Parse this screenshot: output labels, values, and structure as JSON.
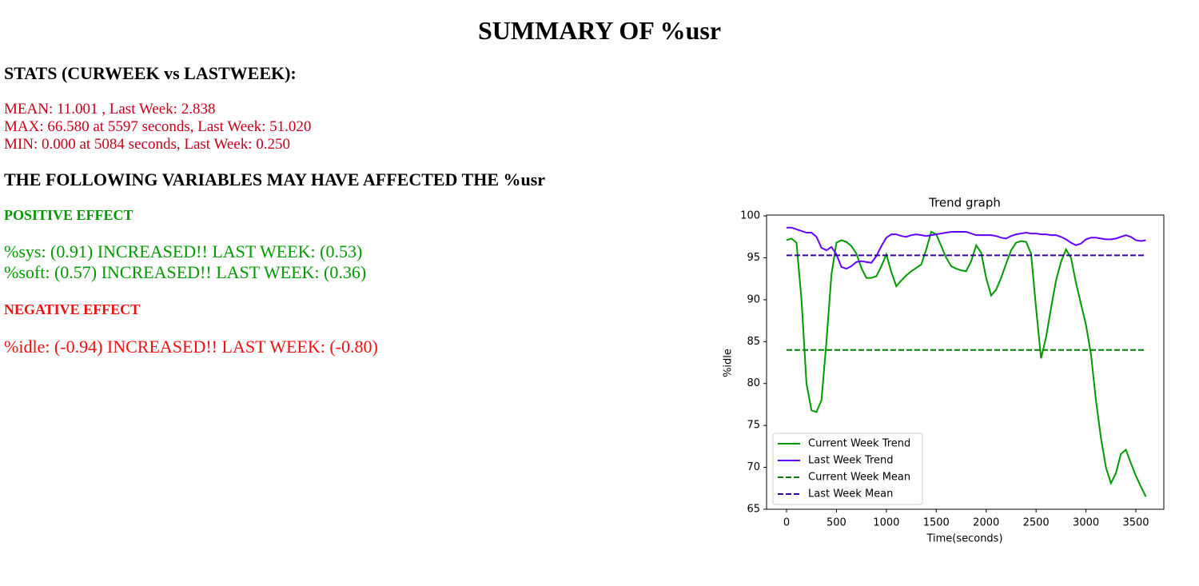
{
  "title": "SUMMARY OF %usr",
  "stats": {
    "heading": "STATS (CURWEEK vs LASTWEEK):",
    "lines": [
      "MEAN: 11.001 , Last Week: 2.838",
      "MAX: 66.580 at 5597 seconds, Last Week: 51.020",
      "MIN: 0.000 at 5084 seconds, Last Week: 0.250"
    ]
  },
  "variables_heading": "THE FOLLOWING VARIABLES MAY HAVE AFFECTED THE %usr",
  "positive": {
    "heading": "POSITIVE EFFECT",
    "lines": [
      "%sys: (0.91) INCREASED!! LAST WEEK: (0.53)",
      "%soft: (0.57) INCREASED!! LAST WEEK: (0.36)"
    ]
  },
  "negative": {
    "heading": "NEGATIVE EFFECT",
    "lines": [
      "%idle: (-0.94) INCREASED!! LAST WEEK: (-0.80)"
    ]
  },
  "chart_data": {
    "type": "line",
    "title": "Trend graph",
    "x_label": "Time(seconds)",
    "y_label": "%idle",
    "x": [
      0,
      50,
      100,
      150,
      200,
      250,
      300,
      350,
      400,
      450,
      500,
      550,
      600,
      650,
      700,
      750,
      800,
      850,
      900,
      950,
      1000,
      1050,
      1100,
      1150,
      1200,
      1250,
      1300,
      1350,
      1400,
      1450,
      1500,
      1550,
      1600,
      1650,
      1700,
      1750,
      1800,
      1850,
      1900,
      1950,
      2000,
      2050,
      2100,
      2150,
      2200,
      2250,
      2300,
      2350,
      2400,
      2450,
      2500,
      2550,
      2600,
      2650,
      2700,
      2750,
      2800,
      2850,
      2900,
      2950,
      3000,
      3050,
      3100,
      3150,
      3200,
      3250,
      3300,
      3350,
      3400,
      3450,
      3500,
      3550,
      3600
    ],
    "series": [
      {
        "name": "Current Week Trend",
        "color": "#009900",
        "values": [
          97.1,
          97.3,
          96.8,
          90,
          80,
          76.8,
          76.6,
          78,
          85,
          93,
          96.8,
          97.1,
          96.9,
          96.4,
          95.5,
          93.8,
          92.6,
          92.6,
          92.8,
          94,
          95.4,
          93.3,
          91.6,
          92.3,
          92.9,
          93.4,
          93.8,
          94.2,
          96,
          98.1,
          97.8,
          96.4,
          95,
          94,
          93.7,
          93.5,
          93.4,
          94.6,
          96.5,
          95.6,
          92.6,
          90.5,
          91.2,
          92.6,
          94.3,
          95.9,
          96.8,
          97,
          96.9,
          95.5,
          89,
          83,
          85.5,
          89,
          92.3,
          94.5,
          96,
          95,
          92,
          89.5,
          87,
          83.5,
          78,
          73.5,
          70,
          68.1,
          69.3,
          71.6,
          72.1,
          70.5,
          69,
          67.7,
          66.5
        ]
      },
      {
        "name": "Last Week Trend",
        "color": "#6600ff",
        "values": [
          98.6,
          98.6,
          98.4,
          98.2,
          98,
          98,
          97.5,
          96.2,
          95.9,
          96.3,
          95.4,
          93.9,
          93.7,
          94,
          94.5,
          94.6,
          94.5,
          94.4,
          95.2,
          96.4,
          97.4,
          97.8,
          97.8,
          97.6,
          97.5,
          97.7,
          97.8,
          97.7,
          97.6,
          97.7,
          97.8,
          97.9,
          98,
          98.1,
          98.1,
          98.1,
          98.1,
          97.9,
          97.7,
          97.7,
          97.7,
          97.7,
          97.6,
          97.4,
          97.3,
          97.6,
          97.8,
          97.9,
          98,
          97.9,
          97.9,
          97.8,
          97.8,
          97.7,
          97.7,
          97.5,
          97.2,
          96.8,
          96.5,
          96.7,
          97.2,
          97.4,
          97.4,
          97.3,
          97.2,
          97.2,
          97.3,
          97.5,
          97.7,
          97.5,
          97.1,
          97,
          97.1
        ]
      },
      {
        "name": "Current Week Mean",
        "color": "#008000",
        "value": 84.0,
        "dashed": true
      },
      {
        "name": "Last Week Mean",
        "color": "#330099",
        "value": 95.3,
        "dashed": true
      }
    ],
    "xlim": [
      -200,
      3780
    ],
    "ylim": [
      65,
      100.1
    ],
    "xticks": [
      0,
      500,
      1000,
      1500,
      2000,
      2500,
      3000,
      3500
    ],
    "yticks": [
      65,
      70,
      75,
      80,
      85,
      90,
      95,
      100
    ],
    "legend": "lower left"
  }
}
